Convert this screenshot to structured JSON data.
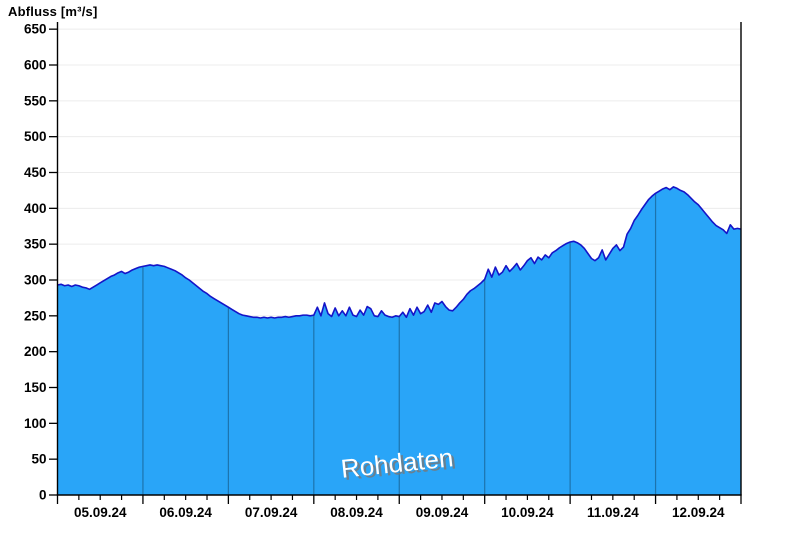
{
  "title": "Abfluss [m³/s]",
  "watermark": "Rohdaten",
  "colors": {
    "area_fill": "#29A5F8",
    "data_line": "#1414C8",
    "h_gridline": "#ECECEC",
    "day_separator": "rgba(0,0,0,0.30)",
    "axis": "#000000",
    "tick_text": "#000000",
    "watermark_text": "#FFFFFF",
    "watermark_shadow": "#787878"
  },
  "chart_data": {
    "type": "area",
    "title": "Abfluss [m³/s]",
    "ylabel": "Abfluss [m³/s]",
    "xlabel": "",
    "ylim": [
      0,
      660
    ],
    "yticks": [
      0,
      50,
      100,
      150,
      200,
      250,
      300,
      350,
      400,
      450,
      500,
      550,
      600,
      650
    ],
    "x_day_labels": [
      "05.09.24",
      "06.09.24",
      "07.09.24",
      "08.09.24",
      "09.09.24",
      "10.09.24",
      "11.09.24",
      "12.09.24"
    ],
    "x_start": "05.09.24 00:00",
    "x_step_hours": 1,
    "x_total_hours": 192,
    "minor_tick_hours": 6,
    "grid": "light horizontal gridlines every 50; dark vertical separators at day boundaries inside filled area",
    "legend": "none",
    "annotation": "Rohdaten",
    "series": [
      {
        "name": "Abfluss Rohdaten",
        "unit": "m³/s",
        "values": [
          293,
          294,
          292,
          293,
          291,
          293,
          292,
          290,
          289,
          287,
          290,
          293,
          296,
          299,
          302,
          305,
          307,
          310,
          312,
          309,
          311,
          314,
          316,
          318,
          319,
          320,
          321,
          320,
          321,
          320,
          319,
          317,
          315,
          313,
          310,
          307,
          303,
          300,
          296,
          292,
          288,
          284,
          281,
          277,
          274,
          271,
          268,
          265,
          262,
          259,
          256,
          253,
          251,
          250,
          249,
          248,
          248,
          247,
          248,
          247,
          248,
          247,
          248,
          248,
          249,
          248,
          249,
          250,
          250,
          251,
          251,
          250,
          251,
          262,
          250,
          268,
          253,
          249,
          261,
          250,
          257,
          250,
          262,
          251,
          249,
          258,
          251,
          263,
          260,
          250,
          249,
          257,
          251,
          249,
          248,
          250,
          249,
          255,
          248,
          260,
          251,
          262,
          253,
          256,
          265,
          255,
          268,
          266,
          270,
          263,
          258,
          257,
          262,
          268,
          273,
          280,
          285,
          288,
          292,
          296,
          301,
          315,
          304,
          318,
          307,
          311,
          320,
          312,
          317,
          323,
          314,
          320,
          327,
          331,
          323,
          332,
          328,
          335,
          331,
          338,
          341,
          345,
          348,
          351,
          353,
          354,
          352,
          349,
          344,
          337,
          330,
          327,
          331,
          342,
          328,
          336,
          344,
          349,
          341,
          346,
          364,
          372,
          383,
          390,
          398,
          405,
          412,
          417,
          421,
          424,
          427,
          429,
          426,
          430,
          428,
          425,
          423,
          419,
          414,
          409,
          405,
          399,
          393,
          387,
          381,
          376,
          373,
          370,
          365,
          377,
          371,
          372,
          371
        ]
      }
    ]
  }
}
